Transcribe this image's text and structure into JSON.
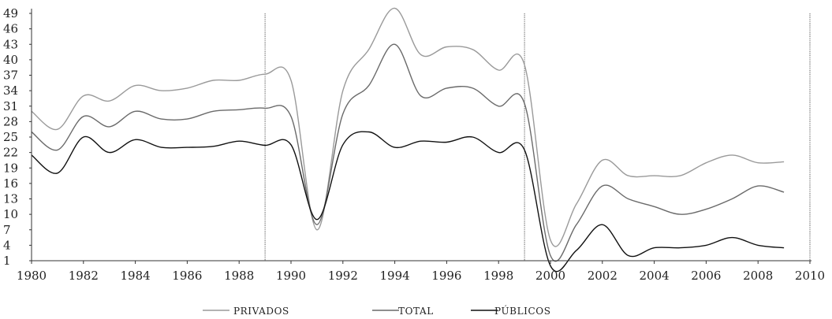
{
  "chart_data": {
    "type": "line",
    "title": "",
    "xlabel": "",
    "ylabel": "",
    "xlim": [
      1980,
      2010
    ],
    "ylim": [
      1,
      49
    ],
    "x_ticks": [
      1980,
      1982,
      1984,
      1986,
      1988,
      1990,
      1992,
      1994,
      1996,
      1998,
      2000,
      2002,
      2004,
      2006,
      2008,
      2010
    ],
    "y_ticks": [
      1,
      4,
      7,
      10,
      13,
      16,
      19,
      22,
      25,
      28,
      31,
      34,
      37,
      40,
      43,
      46,
      49
    ],
    "vertical_reference_lines": [
      1989,
      1999,
      2010
    ],
    "grid": false,
    "legend_position": "bottom-center",
    "x": [
      1980,
      1981,
      1982,
      1983,
      1984,
      1985,
      1986,
      1987,
      1988,
      1989,
      1990,
      1991,
      1992,
      1993,
      1994,
      1995,
      1996,
      1997,
      1998,
      1999,
      2000,
      2001,
      2002,
      2003,
      2004,
      2005,
      2006,
      2007,
      2008,
      2009
    ],
    "series": [
      {
        "name": "PRIVADOS",
        "color": "#9a9a9a",
        "values": [
          30,
          26.5,
          33,
          32,
          35,
          34,
          34.5,
          36,
          36,
          37.2,
          36,
          7,
          34,
          42,
          50,
          41,
          42.5,
          42,
          38,
          39,
          5,
          12,
          20.5,
          17.5,
          17.5,
          17.5,
          20,
          21.5,
          20,
          20.2
        ]
      },
      {
        "name": "TOTAL",
        "color": "#6a6a6a",
        "values": [
          26,
          22.5,
          29,
          27,
          30,
          28.5,
          28.5,
          30,
          30.3,
          30.6,
          29,
          8,
          29.5,
          35,
          43,
          33,
          34.5,
          34.5,
          31,
          31.5,
          2,
          8,
          15.5,
          13,
          11.5,
          10,
          11,
          13,
          15.5,
          14.3
        ]
      },
      {
        "name": "PÚBLICOS",
        "color": "#111111",
        "values": [
          21.5,
          18,
          25,
          22,
          24.5,
          23,
          23,
          23.2,
          24.2,
          23.4,
          23.5,
          9,
          23.5,
          26,
          23,
          24.2,
          24,
          25,
          22,
          22.5,
          0,
          3,
          8,
          2,
          3.5,
          3.5,
          4,
          5.5,
          4,
          3.5
        ]
      }
    ]
  }
}
